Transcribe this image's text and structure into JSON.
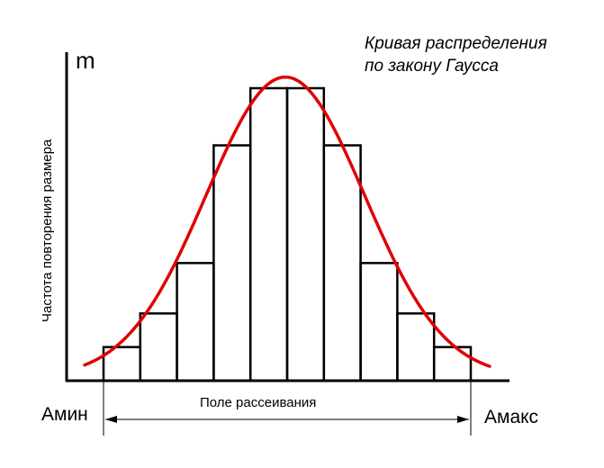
{
  "chart_data": {
    "type": "bar",
    "title_line1": "Кривая распределения",
    "title_line2": "по закону Гаусса",
    "y_axis_symbol": "m",
    "ylabel": "Частота повторения размера",
    "x_min_label": "Амин",
    "x_max_label": "Амакс",
    "range_label": "Поле рассеивания",
    "bins": 10,
    "values": [
      1,
      2,
      3.5,
      7,
      8.7,
      8.7,
      7,
      3.5,
      2,
      1
    ],
    "ylim": [
      0,
      9.2
    ],
    "curve": "gaussian",
    "colors": {
      "bars": "#000000",
      "curve": "#e00000",
      "axes": "#000000"
    }
  }
}
